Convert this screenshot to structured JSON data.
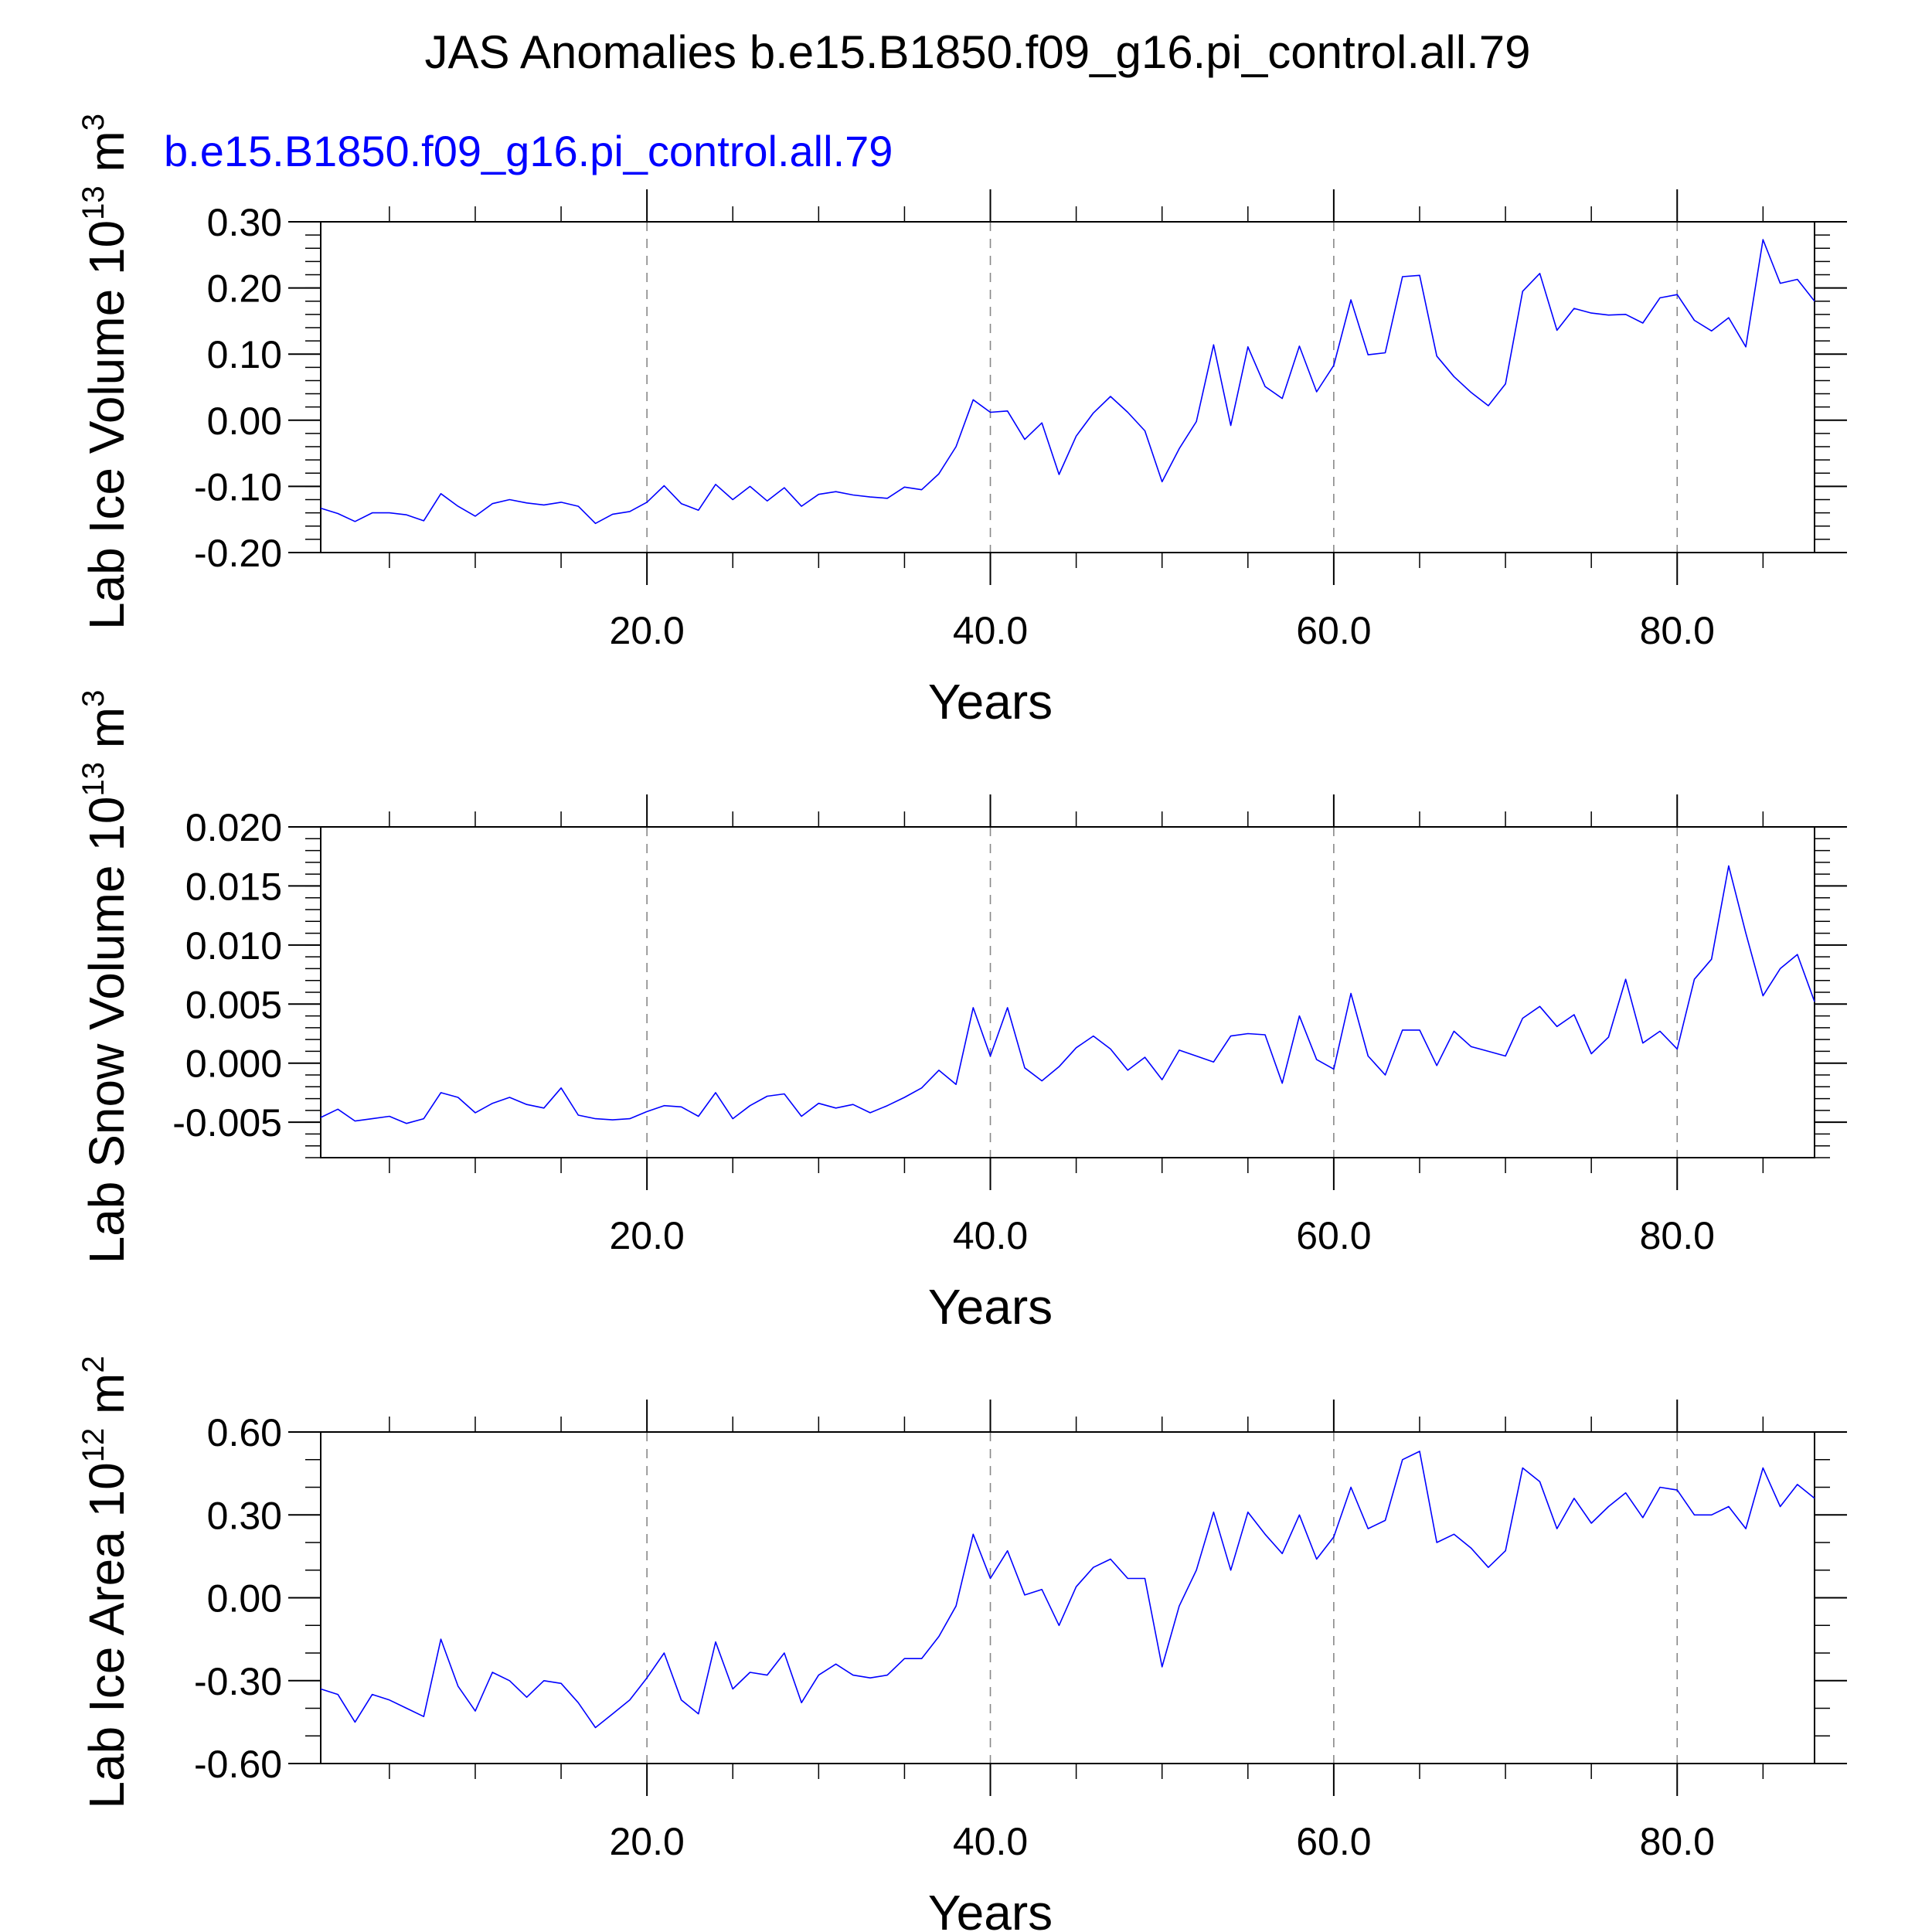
{
  "figure_title": "JAS Anomalies b.e15.B1850.f09_g16.pi_control.all.79",
  "series_label": "b.e15.B1850.f09_g16.pi_control.all.79",
  "line_color": "#0000ff",
  "chart_data": [
    {
      "type": "line",
      "ylabel": "Lab Ice Volume 10",
      "ylabel_exp": "13",
      "ylabel_unit": " m",
      "ylabel_unit_exp": "3",
      "xlabel": "Years",
      "xlim": [
        1,
        88
      ],
      "ylim": [
        -0.2,
        0.3
      ],
      "yticks": [
        -0.2,
        -0.1,
        0.0,
        0.1,
        0.2,
        0.3
      ],
      "ytick_labels": [
        "-0.20",
        "-0.10",
        "0.00",
        "0.10",
        "0.20",
        "0.30"
      ],
      "yminor_step": 0.02,
      "xticks": [
        20,
        40,
        60,
        80
      ],
      "xtick_labels": [
        "20.0",
        "40.0",
        "60.0",
        "80.0"
      ],
      "x_start": 1,
      "values": [
        -0.133,
        -0.141,
        -0.153,
        -0.14,
        -0.14,
        -0.143,
        -0.152,
        -0.111,
        -0.13,
        -0.145,
        -0.126,
        -0.12,
        -0.125,
        -0.128,
        -0.124,
        -0.13,
        -0.156,
        -0.142,
        -0.138,
        -0.124,
        -0.099,
        -0.126,
        -0.136,
        -0.097,
        -0.12,
        -0.1,
        -0.122,
        -0.102,
        -0.13,
        -0.112,
        -0.108,
        -0.113,
        -0.116,
        -0.118,
        -0.101,
        -0.105,
        -0.081,
        -0.04,
        0.031,
        0.012,
        0.014,
        -0.029,
        -0.004,
        -0.082,
        -0.024,
        0.011,
        0.036,
        0.012,
        -0.016,
        -0.093,
        -0.043,
        -0.002,
        0.114,
        -0.008,
        0.111,
        0.051,
        0.033,
        0.112,
        0.043,
        0.083,
        0.182,
        0.099,
        0.102,
        0.217,
        0.219,
        0.097,
        0.066,
        0.042,
        0.022,
        0.055,
        0.195,
        0.222,
        0.136,
        0.169,
        0.162,
        0.159,
        0.16,
        0.147,
        0.185,
        0.19,
        0.151,
        0.135,
        0.155,
        0.111,
        0.273,
        0.207,
        0.213,
        0.18
      ]
    },
    {
      "type": "line",
      "ylabel": "Lab Snow Volume 10",
      "ylabel_exp": "13",
      "ylabel_unit": " m",
      "ylabel_unit_exp": "3",
      "xlabel": "Years",
      "xlim": [
        1,
        88
      ],
      "ylim": [
        -0.008,
        0.02
      ],
      "yticks": [
        -0.005,
        0.0,
        0.005,
        0.01,
        0.015,
        0.02
      ],
      "ytick_labels": [
        "-0.005",
        "0.000",
        "0.005",
        "0.010",
        "0.015",
        "0.020"
      ],
      "yminor_step": 0.001,
      "xticks": [
        20,
        40,
        60,
        80
      ],
      "xtick_labels": [
        "20.0",
        "40.0",
        "60.0",
        "80.0"
      ],
      "x_start": 1,
      "values": [
        -0.0046,
        -0.0039,
        -0.0049,
        -0.0047,
        -0.0045,
        -0.0051,
        -0.0047,
        -0.0025,
        -0.0029,
        -0.0042,
        -0.0034,
        -0.0029,
        -0.0035,
        -0.0038,
        -0.0021,
        -0.0044,
        -0.0047,
        -0.0048,
        -0.0047,
        -0.0041,
        -0.0036,
        -0.0037,
        -0.0045,
        -0.0025,
        -0.0047,
        -0.0036,
        -0.0028,
        -0.0026,
        -0.0045,
        -0.0034,
        -0.0038,
        -0.0035,
        -0.0042,
        -0.0036,
        -0.0029,
        -0.0021,
        -0.0006,
        -0.0018,
        0.0047,
        0.0006,
        0.0047,
        -0.0004,
        -0.0015,
        -0.0003,
        0.0013,
        0.0023,
        0.0012,
        -0.0006,
        0.0005,
        -0.0014,
        0.0011,
        0.0006,
        0.0001,
        0.0023,
        0.0025,
        0.0024,
        -0.0017,
        0.004,
        0.0003,
        -0.0005,
        0.0059,
        0.0006,
        -0.001,
        0.0028,
        0.0028,
        -0.0002,
        0.0027,
        0.0014,
        0.001,
        0.0006,
        0.0038,
        0.0048,
        0.0031,
        0.0041,
        0.0008,
        0.0022,
        0.0071,
        0.0017,
        0.0027,
        0.0012,
        0.0071,
        0.0088,
        0.0167,
        0.011,
        0.0057,
        0.008,
        0.0092,
        0.0052
      ]
    },
    {
      "type": "line",
      "ylabel": "Lab Ice Area 10",
      "ylabel_exp": "12",
      "ylabel_unit": " m",
      "ylabel_unit_exp": "2",
      "xlabel": "Years",
      "xlim": [
        1,
        88
      ],
      "ylim": [
        -0.6,
        0.6
      ],
      "yticks": [
        -0.6,
        -0.3,
        0.0,
        0.3,
        0.6
      ],
      "ytick_labels": [
        "-0.60",
        "-0.30",
        "0.00",
        "0.30",
        "0.60"
      ],
      "yminor_step": 0.1,
      "xticks": [
        20,
        40,
        60,
        80
      ],
      "xtick_labels": [
        "20.0",
        "40.0",
        "60.0",
        "80.0"
      ],
      "x_start": 1,
      "values": [
        -0.33,
        -0.35,
        -0.45,
        -0.35,
        -0.37,
        -0.4,
        -0.43,
        -0.15,
        -0.32,
        -0.41,
        -0.27,
        -0.3,
        -0.36,
        -0.3,
        -0.31,
        -0.38,
        -0.47,
        -0.42,
        -0.37,
        -0.29,
        -0.2,
        -0.37,
        -0.42,
        -0.16,
        -0.33,
        -0.27,
        -0.28,
        -0.2,
        -0.38,
        -0.28,
        -0.24,
        -0.28,
        -0.29,
        -0.28,
        -0.22,
        -0.22,
        -0.14,
        -0.03,
        0.23,
        0.07,
        0.17,
        0.01,
        0.03,
        -0.1,
        0.04,
        0.11,
        0.14,
        0.07,
        0.07,
        -0.25,
        -0.03,
        0.1,
        0.31,
        0.1,
        0.31,
        0.23,
        0.16,
        0.3,
        0.14,
        0.22,
        0.4,
        0.25,
        0.28,
        0.5,
        0.53,
        0.2,
        0.23,
        0.18,
        0.11,
        0.17,
        0.47,
        0.42,
        0.25,
        0.36,
        0.27,
        0.33,
        0.38,
        0.29,
        0.4,
        0.39,
        0.3,
        0.3,
        0.33,
        0.25,
        0.47,
        0.33,
        0.41,
        0.36
      ]
    }
  ]
}
